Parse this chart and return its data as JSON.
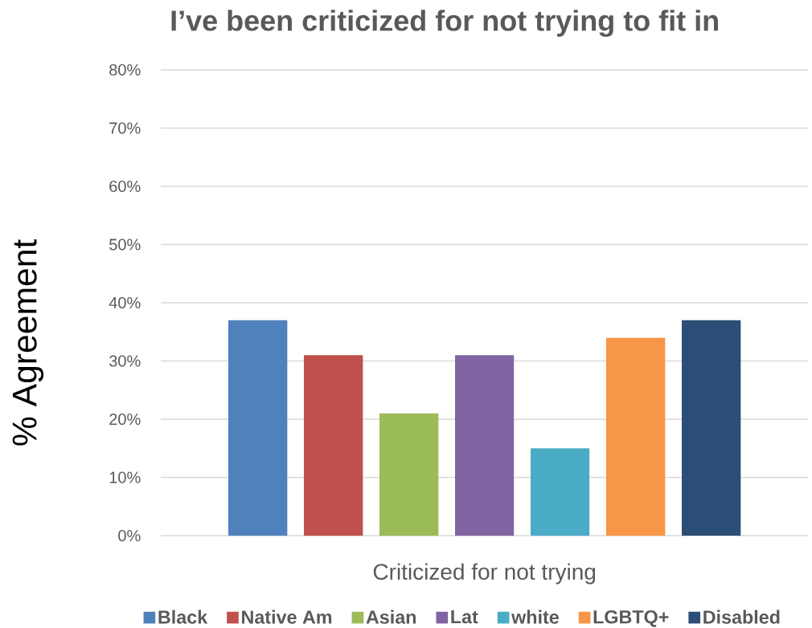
{
  "chart_data": {
    "type": "bar",
    "title": "I’ve been criticized for not trying to fit in",
    "ylabel": "% Agreement",
    "categories": [
      "Criticized for not trying"
    ],
    "series": [
      {
        "name": "Black",
        "color": "#4f81bd",
        "values": [
          37
        ]
      },
      {
        "name": "Native Am",
        "color": "#c0504d",
        "values": [
          31
        ]
      },
      {
        "name": "Asian",
        "color": "#9bbb59",
        "values": [
          21
        ]
      },
      {
        "name": "Lat",
        "color": "#8064a2",
        "values": [
          31
        ]
      },
      {
        "name": "white",
        "color": "#4bacc6",
        "values": [
          15
        ]
      },
      {
        "name": "LGBTQ+",
        "color": "#f79646",
        "values": [
          34
        ]
      },
      {
        "name": "Disabled",
        "color": "#2c4d75",
        "values": [
          37
        ]
      }
    ],
    "ylim": [
      0,
      80
    ],
    "yticks": [
      {
        "value": 0,
        "label": "0%"
      },
      {
        "value": 10,
        "label": "10%"
      },
      {
        "value": 20,
        "label": "20%"
      },
      {
        "value": 30,
        "label": "30%"
      },
      {
        "value": 40,
        "label": "40%"
      },
      {
        "value": 50,
        "label": "50%"
      },
      {
        "value": 60,
        "label": "60%"
      },
      {
        "value": 70,
        "label": "70%"
      },
      {
        "value": 80,
        "label": "80%"
      }
    ],
    "grid": "y",
    "legend": "bottom"
  }
}
